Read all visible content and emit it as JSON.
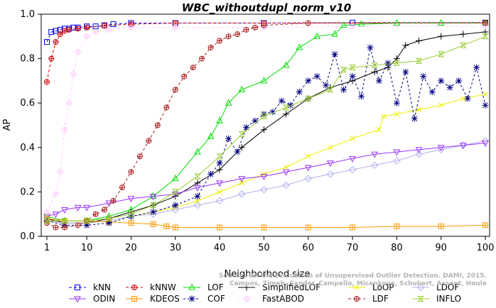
{
  "chart_data": {
    "type": "line",
    "title": "WBC_withoutdupl_norm_v10",
    "xlabel": "Neighborhood size",
    "ylabel": "AP",
    "xlim": [
      1,
      100
    ],
    "ylim": [
      0,
      1
    ],
    "x_ticks": [
      1,
      10,
      20,
      30,
      40,
      50,
      60,
      70,
      80,
      90,
      100
    ],
    "y_ticks": [
      "0.0",
      "0.2",
      "0.4",
      "0.6",
      "0.8",
      "1.0"
    ],
    "grid": false,
    "legend_position": "bottom",
    "credit": [
      "Source: On the Evaluation of Unsupervised Outlier Detection. DAMI, 2015.",
      "Campos, Zimek, Sander, Campello, Micenkova, Schubert, Assent, Houle"
    ],
    "series": [
      {
        "name": "kNN",
        "color": "#0000ee",
        "marker": "square",
        "dash": "4,3",
        "points": [
          [
            1,
            0.875
          ],
          [
            2,
            0.92
          ],
          [
            3,
            0.925
          ],
          [
            4,
            0.93
          ],
          [
            5,
            0.935
          ],
          [
            6,
            0.935
          ],
          [
            7,
            0.94
          ],
          [
            8,
            0.94
          ],
          [
            10,
            0.945
          ],
          [
            12,
            0.945
          ],
          [
            14,
            0.95
          ],
          [
            16,
            0.955
          ],
          [
            20,
            0.96
          ],
          [
            30,
            0.96
          ],
          [
            50,
            0.96
          ],
          [
            70,
            0.962
          ],
          [
            100,
            0.962
          ]
        ]
      },
      {
        "name": "kNNW",
        "color": "#cc0000",
        "marker": "circle-cross",
        "dash": "4,3",
        "points": [
          [
            1,
            0.695
          ],
          [
            2,
            0.8
          ],
          [
            3,
            0.875
          ],
          [
            4,
            0.91
          ],
          [
            5,
            0.925
          ],
          [
            6,
            0.93
          ],
          [
            8,
            0.935
          ],
          [
            10,
            0.94
          ],
          [
            14,
            0.948
          ],
          [
            20,
            0.955
          ],
          [
            30,
            0.96
          ],
          [
            50,
            0.96
          ],
          [
            100,
            0.962
          ]
        ]
      },
      {
        "name": "LOF",
        "color": "#00dd00",
        "marker": "triangle",
        "dash": "",
        "points": [
          [
            1,
            0.09
          ],
          [
            5,
            0.07
          ],
          [
            10,
            0.07
          ],
          [
            15,
            0.09
          ],
          [
            20,
            0.12
          ],
          [
            25,
            0.18
          ],
          [
            30,
            0.26
          ],
          [
            35,
            0.38
          ],
          [
            38,
            0.45
          ],
          [
            40,
            0.52
          ],
          [
            42,
            0.6
          ],
          [
            45,
            0.66
          ],
          [
            50,
            0.7
          ],
          [
            55,
            0.77
          ],
          [
            58,
            0.85
          ],
          [
            62,
            0.9
          ],
          [
            66,
            0.91
          ],
          [
            68,
            0.95
          ],
          [
            72,
            0.955
          ],
          [
            80,
            0.96
          ],
          [
            90,
            0.96
          ],
          [
            100,
            0.96
          ]
        ]
      },
      {
        "name": "SimplifiedLOF",
        "color": "#000000",
        "marker": "plus",
        "dash": "",
        "points": [
          [
            1,
            0.08
          ],
          [
            5,
            0.06
          ],
          [
            10,
            0.06
          ],
          [
            15,
            0.08
          ],
          [
            20,
            0.11
          ],
          [
            25,
            0.14
          ],
          [
            30,
            0.18
          ],
          [
            35,
            0.24
          ],
          [
            40,
            0.3
          ],
          [
            45,
            0.4
          ],
          [
            50,
            0.48
          ],
          [
            55,
            0.55
          ],
          [
            60,
            0.62
          ],
          [
            65,
            0.67
          ],
          [
            70,
            0.7
          ],
          [
            75,
            0.74
          ],
          [
            78,
            0.76
          ],
          [
            80,
            0.8
          ],
          [
            82,
            0.86
          ],
          [
            85,
            0.88
          ],
          [
            90,
            0.9
          ],
          [
            95,
            0.91
          ],
          [
            100,
            0.92
          ]
        ]
      },
      {
        "name": "LoOP",
        "color": "#eeee00",
        "marker": "x",
        "dash": "",
        "points": [
          [
            1,
            0.07
          ],
          [
            5,
            0.06
          ],
          [
            10,
            0.06
          ],
          [
            15,
            0.07
          ],
          [
            20,
            0.09
          ],
          [
            25,
            0.11
          ],
          [
            30,
            0.13
          ],
          [
            35,
            0.16
          ],
          [
            40,
            0.2
          ],
          [
            45,
            0.24
          ],
          [
            50,
            0.28
          ],
          [
            55,
            0.31
          ],
          [
            60,
            0.36
          ],
          [
            65,
            0.4
          ],
          [
            70,
            0.44
          ],
          [
            76,
            0.48
          ],
          [
            77,
            0.54
          ],
          [
            80,
            0.55
          ],
          [
            85,
            0.57
          ],
          [
            90,
            0.59
          ],
          [
            95,
            0.62
          ],
          [
            100,
            0.64
          ]
        ]
      },
      {
        "name": "LDOF",
        "color": "#b0b0ee",
        "marker": "diamond",
        "dash": "",
        "points": [
          [
            1,
            0.07
          ],
          [
            5,
            0.06
          ],
          [
            10,
            0.06
          ],
          [
            15,
            0.07
          ],
          [
            20,
            0.09
          ],
          [
            25,
            0.1
          ],
          [
            30,
            0.12
          ],
          [
            35,
            0.14
          ],
          [
            40,
            0.16
          ],
          [
            45,
            0.19
          ],
          [
            50,
            0.21
          ],
          [
            55,
            0.23
          ],
          [
            60,
            0.26
          ],
          [
            65,
            0.28
          ],
          [
            70,
            0.3
          ],
          [
            75,
            0.32
          ],
          [
            80,
            0.34
          ],
          [
            85,
            0.37
          ],
          [
            90,
            0.39
          ],
          [
            95,
            0.41
          ],
          [
            100,
            0.43
          ]
        ]
      },
      {
        "name": "ODIN",
        "color": "#9933ff",
        "marker": "triangle-down",
        "dash": "",
        "points": [
          [
            1,
            0.09
          ],
          [
            3,
            0.1
          ],
          [
            5,
            0.12
          ],
          [
            8,
            0.13
          ],
          [
            10,
            0.13
          ],
          [
            15,
            0.15
          ],
          [
            20,
            0.17
          ],
          [
            25,
            0.18
          ],
          [
            30,
            0.19
          ],
          [
            35,
            0.22
          ],
          [
            40,
            0.24
          ],
          [
            45,
            0.26
          ],
          [
            50,
            0.27
          ],
          [
            55,
            0.29
          ],
          [
            60,
            0.31
          ],
          [
            65,
            0.33
          ],
          [
            70,
            0.35
          ],
          [
            75,
            0.37
          ],
          [
            80,
            0.38
          ],
          [
            85,
            0.39
          ],
          [
            90,
            0.4
          ],
          [
            95,
            0.41
          ],
          [
            100,
            0.42
          ]
        ]
      },
      {
        "name": "KDEOS",
        "color": "#ff9900",
        "marker": "square-cross",
        "dash": "",
        "points": [
          [
            1,
            0.08
          ],
          [
            5,
            0.07
          ],
          [
            10,
            0.07
          ],
          [
            15,
            0.065
          ],
          [
            20,
            0.06
          ],
          [
            25,
            0.055
          ],
          [
            28,
            0.045
          ],
          [
            30,
            0.04
          ],
          [
            40,
            0.04
          ],
          [
            50,
            0.04
          ],
          [
            60,
            0.04
          ],
          [
            70,
            0.04
          ],
          [
            80,
            0.045
          ],
          [
            90,
            0.045
          ],
          [
            100,
            0.05
          ]
        ]
      },
      {
        "name": "COF",
        "color": "#000080",
        "marker": "star",
        "dash": "3,3",
        "points": [
          [
            1,
            0.07
          ],
          [
            5,
            0.05
          ],
          [
            10,
            0.05
          ],
          [
            15,
            0.06
          ],
          [
            20,
            0.09
          ],
          [
            25,
            0.11
          ],
          [
            30,
            0.14
          ],
          [
            35,
            0.18
          ],
          [
            38,
            0.28
          ],
          [
            40,
            0.33
          ],
          [
            42,
            0.44
          ],
          [
            44,
            0.38
          ],
          [
            46,
            0.49
          ],
          [
            48,
            0.52
          ],
          [
            50,
            0.55
          ],
          [
            52,
            0.56
          ],
          [
            54,
            0.61
          ],
          [
            56,
            0.59
          ],
          [
            58,
            0.65
          ],
          [
            60,
            0.7
          ],
          [
            62,
            0.72
          ],
          [
            64,
            0.68
          ],
          [
            66,
            0.82
          ],
          [
            68,
            0.66
          ],
          [
            70,
            0.72
          ],
          [
            72,
            0.63
          ],
          [
            74,
            0.85
          ],
          [
            76,
            0.7
          ],
          [
            78,
            0.78
          ],
          [
            80,
            0.6
          ],
          [
            82,
            0.74
          ],
          [
            84,
            0.53
          ],
          [
            86,
            0.72
          ],
          [
            88,
            0.65
          ],
          [
            90,
            0.7
          ],
          [
            92,
            0.67
          ],
          [
            94,
            0.7
          ],
          [
            96,
            0.62
          ],
          [
            98,
            0.76
          ],
          [
            100,
            0.59
          ]
        ]
      },
      {
        "name": "FastABOD",
        "color": "#ffccff",
        "marker": "circle-cross",
        "dash": "4,3",
        "points": [
          [
            1,
            0.11
          ],
          [
            3,
            0.19
          ],
          [
            4,
            0.29
          ],
          [
            5,
            0.48
          ],
          [
            6,
            0.6
          ],
          [
            7,
            0.73
          ],
          [
            8,
            0.83
          ],
          [
            10,
            0.9
          ],
          [
            12,
            0.92
          ],
          [
            15,
            0.93
          ],
          [
            20,
            0.94
          ],
          [
            30,
            0.94
          ],
          [
            50,
            0.94
          ],
          [
            70,
            0.945
          ],
          [
            100,
            0.945
          ]
        ]
      },
      {
        "name": "LDF",
        "color": "#aa2222",
        "marker": "circle-cross",
        "dash": "4,3",
        "points": [
          [
            1,
            0.06
          ],
          [
            3,
            0.04
          ],
          [
            5,
            0.04
          ],
          [
            8,
            0.05
          ],
          [
            10,
            0.07
          ],
          [
            12,
            0.1
          ],
          [
            14,
            0.12
          ],
          [
            16,
            0.16
          ],
          [
            18,
            0.22
          ],
          [
            20,
            0.29
          ],
          [
            22,
            0.36
          ],
          [
            24,
            0.43
          ],
          [
            26,
            0.5
          ],
          [
            28,
            0.58
          ],
          [
            30,
            0.66
          ],
          [
            32,
            0.72
          ],
          [
            34,
            0.76
          ],
          [
            36,
            0.8
          ],
          [
            38,
            0.85
          ],
          [
            40,
            0.88
          ],
          [
            42,
            0.9
          ],
          [
            44,
            0.91
          ],
          [
            46,
            0.93
          ],
          [
            48,
            0.94
          ],
          [
            50,
            0.95
          ],
          [
            60,
            0.96
          ],
          [
            100,
            0.96
          ]
        ]
      },
      {
        "name": "INFLO",
        "color": "#99cc33",
        "marker": "hourglass",
        "dash": "",
        "points": [
          [
            1,
            0.07
          ],
          [
            5,
            0.07
          ],
          [
            10,
            0.07
          ],
          [
            15,
            0.08
          ],
          [
            20,
            0.1
          ],
          [
            25,
            0.14
          ],
          [
            30,
            0.2
          ],
          [
            35,
            0.27
          ],
          [
            40,
            0.36
          ],
          [
            45,
            0.46
          ],
          [
            50,
            0.54
          ],
          [
            55,
            0.58
          ],
          [
            60,
            0.62
          ],
          [
            65,
            0.66
          ],
          [
            68,
            0.75
          ],
          [
            70,
            0.76
          ],
          [
            75,
            0.77
          ],
          [
            80,
            0.78
          ],
          [
            85,
            0.79
          ],
          [
            90,
            0.82
          ],
          [
            95,
            0.86
          ],
          [
            100,
            0.9
          ]
        ]
      }
    ]
  }
}
